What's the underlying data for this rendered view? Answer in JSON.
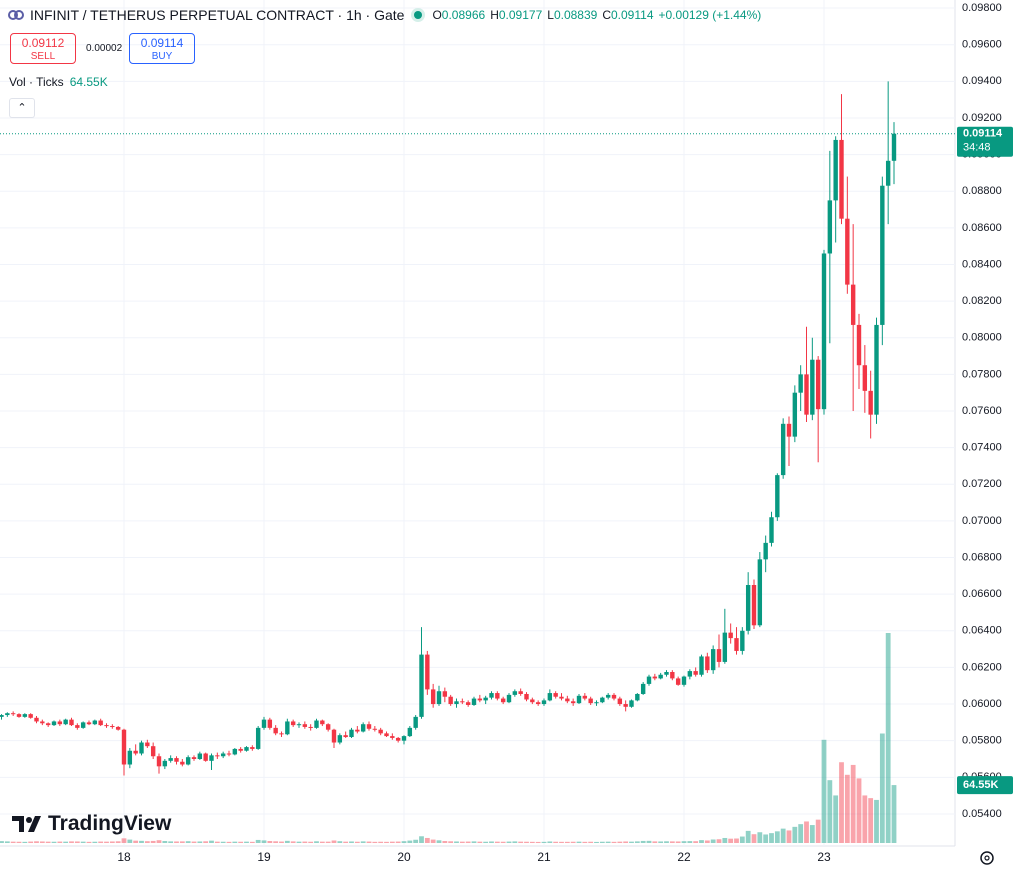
{
  "header": {
    "title": "INFINIT / TETHERUS PERPETUAL CONTRACT · 1h · Gate",
    "ohlc": [
      {
        "key": "O",
        "value": "0.08966"
      },
      {
        "key": "H",
        "value": "0.09177"
      },
      {
        "key": "L",
        "value": "0.08839"
      },
      {
        "key": "C",
        "value": "0.09114"
      }
    ],
    "change": "+0.00129 (+1.44%)",
    "sell_price": "0.09112",
    "sell": "SELL",
    "spread": "0.00002",
    "buy_price": "0.09114",
    "buy": "BUY",
    "vol_title": "Vol · Ticks",
    "vol_value": "64.55K"
  },
  "brand": "TradingView",
  "chart_data": {
    "type": "candlestick",
    "up_color": "#089981",
    "down_color": "#f23645",
    "grid": true,
    "ylim": [
      0.05225,
      0.09844
    ],
    "yticks": [
      {
        "value": 0.054,
        "label": "0.05400"
      },
      {
        "value": 0.056,
        "label": "0.05600"
      },
      {
        "value": 0.058,
        "label": "0.05800"
      },
      {
        "value": 0.06,
        "label": "0.06000"
      },
      {
        "value": 0.062,
        "label": "0.06200"
      },
      {
        "value": 0.064,
        "label": "0.06400"
      },
      {
        "value": 0.066,
        "label": "0.06600"
      },
      {
        "value": 0.068,
        "label": "0.06800"
      },
      {
        "value": 0.07,
        "label": "0.07000"
      },
      {
        "value": 0.072,
        "label": "0.07200"
      },
      {
        "value": 0.074,
        "label": "0.07400"
      },
      {
        "value": 0.076,
        "label": "0.07600"
      },
      {
        "value": 0.078,
        "label": "0.07800"
      },
      {
        "value": 0.08,
        "label": "0.08000"
      },
      {
        "value": 0.082,
        "label": "0.08200"
      },
      {
        "value": 0.084,
        "label": "0.08400"
      },
      {
        "value": 0.086,
        "label": "0.08600"
      },
      {
        "value": 0.088,
        "label": "0.08800"
      },
      {
        "value": 0.09,
        "label": "0.09000"
      },
      {
        "value": 0.092,
        "label": "0.09200"
      },
      {
        "value": 0.094,
        "label": "0.09400"
      },
      {
        "value": 0.096,
        "label": "0.09600"
      },
      {
        "value": 0.098,
        "label": "0.09800"
      }
    ],
    "countdown": "34:48",
    "volume_label": "64.55K",
    "categories": [
      null,
      null,
      null,
      null,
      null,
      null,
      null,
      null,
      null,
      null,
      null,
      null,
      null,
      null,
      null,
      null,
      null,
      null,
      null,
      null,
      null,
      "18",
      null,
      null,
      null,
      null,
      null,
      null,
      null,
      null,
      null,
      null,
      null,
      null,
      null,
      null,
      null,
      null,
      null,
      null,
      null,
      null,
      null,
      null,
      null,
      "19",
      null,
      null,
      null,
      null,
      null,
      null,
      null,
      null,
      null,
      null,
      null,
      null,
      null,
      null,
      null,
      null,
      null,
      null,
      null,
      null,
      null,
      null,
      null,
      "20",
      null,
      null,
      null,
      null,
      null,
      null,
      null,
      null,
      null,
      null,
      null,
      null,
      null,
      null,
      null,
      null,
      null,
      null,
      null,
      null,
      null,
      null,
      null,
      "21",
      null,
      null,
      null,
      null,
      null,
      null,
      null,
      null,
      null,
      null,
      null,
      null,
      null,
      null,
      null,
      null,
      null,
      null,
      null,
      null,
      null,
      null,
      null,
      "22",
      null,
      null,
      null,
      null,
      null,
      null,
      null,
      null,
      null,
      null,
      null,
      null,
      null,
      null,
      null,
      null,
      null,
      null,
      null,
      null,
      null,
      null,
      null,
      "23",
      null,
      null,
      null,
      null,
      null,
      null,
      null,
      null,
      null,
      null,
      null,
      null
    ],
    "candles": [
      [
        0.0593,
        0.05945,
        0.05915,
        0.0594,
        2100
      ],
      [
        0.0594,
        0.05955,
        0.0593,
        0.0595,
        1800
      ],
      [
        0.0595,
        0.0596,
        0.05935,
        0.05945,
        1500
      ],
      [
        0.05945,
        0.0595,
        0.05925,
        0.0593,
        1400
      ],
      [
        0.0593,
        0.0595,
        0.05925,
        0.05945,
        1300
      ],
      [
        0.05945,
        0.0595,
        0.0592,
        0.05925,
        1600
      ],
      [
        0.05925,
        0.05935,
        0.05895,
        0.05905,
        1900
      ],
      [
        0.05905,
        0.05915,
        0.05885,
        0.05895,
        1700
      ],
      [
        0.05895,
        0.059,
        0.05875,
        0.05885,
        1500
      ],
      [
        0.05885,
        0.0591,
        0.0588,
        0.05905,
        1400
      ],
      [
        0.05905,
        0.05915,
        0.0588,
        0.0589,
        1600
      ],
      [
        0.0589,
        0.0592,
        0.05885,
        0.05915,
        1500
      ],
      [
        0.05915,
        0.05925,
        0.0588,
        0.05885,
        1800
      ],
      [
        0.05885,
        0.05895,
        0.0586,
        0.0587,
        1700
      ],
      [
        0.0587,
        0.05905,
        0.05865,
        0.059,
        1500
      ],
      [
        0.059,
        0.0591,
        0.05885,
        0.0589,
        1300
      ],
      [
        0.0589,
        0.05915,
        0.05885,
        0.0591,
        1400
      ],
      [
        0.0591,
        0.0592,
        0.0588,
        0.05885,
        1600
      ],
      [
        0.05885,
        0.05895,
        0.0587,
        0.0588,
        1500
      ],
      [
        0.0588,
        0.0589,
        0.05865,
        0.05875,
        1700
      ],
      [
        0.05875,
        0.0588,
        0.05855,
        0.0586,
        1900
      ],
      [
        0.0586,
        0.05865,
        0.0561,
        0.0567,
        5200
      ],
      [
        0.0567,
        0.0576,
        0.0565,
        0.05745,
        3800
      ],
      [
        0.05745,
        0.0578,
        0.0572,
        0.0573,
        2600
      ],
      [
        0.0573,
        0.058,
        0.0572,
        0.0579,
        2400
      ],
      [
        0.0579,
        0.05805,
        0.0576,
        0.0577,
        2000
      ],
      [
        0.0577,
        0.0579,
        0.057,
        0.05715,
        2300
      ],
      [
        0.05715,
        0.0573,
        0.0562,
        0.0566,
        3100
      ],
      [
        0.0566,
        0.057,
        0.05645,
        0.0569,
        2200
      ],
      [
        0.0569,
        0.0572,
        0.0568,
        0.05705,
        1800
      ],
      [
        0.05705,
        0.05715,
        0.0567,
        0.05685,
        1700
      ],
      [
        0.05685,
        0.057,
        0.0566,
        0.0567,
        1800
      ],
      [
        0.0567,
        0.0572,
        0.05665,
        0.0571,
        2000
      ],
      [
        0.0571,
        0.0572,
        0.0569,
        0.057,
        1600
      ],
      [
        0.057,
        0.0574,
        0.05695,
        0.0573,
        1700
      ],
      [
        0.0573,
        0.05735,
        0.05685,
        0.0569,
        1900
      ],
      [
        0.0569,
        0.0573,
        0.0564,
        0.0572,
        2600
      ],
      [
        0.0572,
        0.05735,
        0.057,
        0.05715,
        1500
      ],
      [
        0.05715,
        0.0574,
        0.05705,
        0.0573,
        1400
      ],
      [
        0.0573,
        0.05745,
        0.05715,
        0.05725,
        1300
      ],
      [
        0.05725,
        0.0576,
        0.0572,
        0.05755,
        1500
      ],
      [
        0.05755,
        0.05765,
        0.05735,
        0.05745,
        1400
      ],
      [
        0.05745,
        0.0577,
        0.0574,
        0.05765,
        1500
      ],
      [
        0.05765,
        0.05775,
        0.05745,
        0.05755,
        1300
      ],
      [
        0.05755,
        0.0588,
        0.0575,
        0.0587,
        3400
      ],
      [
        0.0587,
        0.0593,
        0.0586,
        0.05915,
        2900
      ],
      [
        0.05915,
        0.05925,
        0.0586,
        0.0587,
        2200
      ],
      [
        0.0587,
        0.05885,
        0.0583,
        0.0584,
        1900
      ],
      [
        0.0584,
        0.0585,
        0.0582,
        0.05835,
        1600
      ],
      [
        0.05835,
        0.0592,
        0.0583,
        0.05905,
        2400
      ],
      [
        0.05905,
        0.05915,
        0.05875,
        0.05885,
        1800
      ],
      [
        0.05885,
        0.059,
        0.0587,
        0.0589,
        1500
      ],
      [
        0.0589,
        0.05905,
        0.05865,
        0.05875,
        1600
      ],
      [
        0.05875,
        0.0589,
        0.05855,
        0.0587,
        1400
      ],
      [
        0.0587,
        0.0592,
        0.05865,
        0.0591,
        1900
      ],
      [
        0.0591,
        0.05915,
        0.0588,
        0.0589,
        1500
      ],
      [
        0.0589,
        0.05895,
        0.0585,
        0.0586,
        1500
      ],
      [
        0.0586,
        0.05865,
        0.0576,
        0.0579,
        2800
      ],
      [
        0.0579,
        0.0584,
        0.0578,
        0.0583,
        2000
      ],
      [
        0.0583,
        0.0585,
        0.05815,
        0.0582,
        1500
      ],
      [
        0.0582,
        0.0587,
        0.05815,
        0.0586,
        1700
      ],
      [
        0.0586,
        0.0588,
        0.0584,
        0.0585,
        1400
      ],
      [
        0.0585,
        0.059,
        0.05845,
        0.0589,
        1800
      ],
      [
        0.0589,
        0.05905,
        0.05855,
        0.05865,
        1600
      ],
      [
        0.05865,
        0.0588,
        0.0585,
        0.0586,
        1300
      ],
      [
        0.0586,
        0.0587,
        0.0583,
        0.0584,
        1400
      ],
      [
        0.0584,
        0.0585,
        0.0582,
        0.05825,
        1300
      ],
      [
        0.05825,
        0.0584,
        0.05805,
        0.05815,
        1500
      ],
      [
        0.05815,
        0.0582,
        0.0579,
        0.058,
        1600
      ],
      [
        0.058,
        0.0583,
        0.0578,
        0.05825,
        2000
      ],
      [
        0.05825,
        0.0588,
        0.0582,
        0.0587,
        2700
      ],
      [
        0.0587,
        0.0594,
        0.0586,
        0.0593,
        3600
      ],
      [
        0.0593,
        0.0642,
        0.0592,
        0.0627,
        7500
      ],
      [
        0.0627,
        0.0629,
        0.0605,
        0.0608,
        5600
      ],
      [
        0.0608,
        0.0611,
        0.0598,
        0.06,
        3800
      ],
      [
        0.06,
        0.061,
        0.0599,
        0.0607,
        3000
      ],
      [
        0.0607,
        0.0609,
        0.0601,
        0.0604,
        2200
      ],
      [
        0.0604,
        0.0605,
        0.0599,
        0.06,
        1900
      ],
      [
        0.06,
        0.0603,
        0.0598,
        0.06015,
        1700
      ],
      [
        0.06015,
        0.0603,
        0.06,
        0.0601,
        1500
      ],
      [
        0.0601,
        0.0602,
        0.05985,
        0.05995,
        1600
      ],
      [
        0.05995,
        0.0604,
        0.0599,
        0.0603,
        1800
      ],
      [
        0.0603,
        0.0605,
        0.0601,
        0.0602,
        1500
      ],
      [
        0.0602,
        0.06045,
        0.06,
        0.06035,
        1400
      ],
      [
        0.06035,
        0.0607,
        0.06025,
        0.0606,
        1700
      ],
      [
        0.0606,
        0.0607,
        0.0602,
        0.0603,
        1500
      ],
      [
        0.0603,
        0.0604,
        0.06,
        0.0601,
        1400
      ],
      [
        0.0601,
        0.0606,
        0.06005,
        0.0605,
        1600
      ],
      [
        0.0605,
        0.0608,
        0.0604,
        0.0607,
        1800
      ],
      [
        0.0607,
        0.06085,
        0.06045,
        0.06055,
        1500
      ],
      [
        0.06055,
        0.06065,
        0.06015,
        0.06025,
        1400
      ],
      [
        0.06025,
        0.06035,
        0.06,
        0.0601,
        1300
      ],
      [
        0.0601,
        0.0602,
        0.0599,
        0.06,
        1200
      ],
      [
        0.06,
        0.0603,
        0.0599,
        0.0602,
        1300
      ],
      [
        0.0602,
        0.0608,
        0.06015,
        0.0606,
        1700
      ],
      [
        0.0606,
        0.0607,
        0.0603,
        0.0604,
        1400
      ],
      [
        0.0604,
        0.0606,
        0.0602,
        0.0603,
        1300
      ],
      [
        0.0603,
        0.06045,
        0.06005,
        0.06015,
        1300
      ],
      [
        0.06015,
        0.0603,
        0.0599,
        0.06005,
        1400
      ],
      [
        0.06005,
        0.06055,
        0.06,
        0.06045,
        1500
      ],
      [
        0.06045,
        0.0606,
        0.0602,
        0.0603,
        1300
      ],
      [
        0.0603,
        0.0604,
        0.05995,
        0.06005,
        1400
      ],
      [
        0.06005,
        0.0602,
        0.0599,
        0.0601,
        1200
      ],
      [
        0.0601,
        0.0604,
        0.06005,
        0.06035,
        1400
      ],
      [
        0.06035,
        0.0606,
        0.06025,
        0.0605,
        1500
      ],
      [
        0.0605,
        0.0606,
        0.0602,
        0.0603,
        1300
      ],
      [
        0.0603,
        0.0604,
        0.0599,
        0.06,
        1500
      ],
      [
        0.06,
        0.0602,
        0.0596,
        0.05985,
        1700
      ],
      [
        0.05985,
        0.06025,
        0.0598,
        0.0602,
        1500
      ],
      [
        0.0602,
        0.0606,
        0.06015,
        0.06055,
        1800
      ],
      [
        0.06055,
        0.0612,
        0.0605,
        0.0611,
        2300
      ],
      [
        0.0611,
        0.0616,
        0.061,
        0.0615,
        2400
      ],
      [
        0.0615,
        0.06165,
        0.0613,
        0.0614,
        1800
      ],
      [
        0.0614,
        0.0617,
        0.06135,
        0.0616,
        1700
      ],
      [
        0.0616,
        0.06185,
        0.0615,
        0.06175,
        1900
      ],
      [
        0.06175,
        0.06185,
        0.0613,
        0.0614,
        1800
      ],
      [
        0.0614,
        0.0615,
        0.061,
        0.06105,
        1700
      ],
      [
        0.06105,
        0.06155,
        0.06095,
        0.0615,
        2000
      ],
      [
        0.0615,
        0.0619,
        0.06135,
        0.0618,
        2100
      ],
      [
        0.0618,
        0.062,
        0.0615,
        0.0616,
        2000
      ],
      [
        0.0616,
        0.0627,
        0.0615,
        0.0626,
        3200
      ],
      [
        0.0626,
        0.0628,
        0.0617,
        0.06185,
        2800
      ],
      [
        0.06185,
        0.0632,
        0.06165,
        0.063,
        3900
      ],
      [
        0.063,
        0.0638,
        0.062,
        0.0623,
        4200
      ],
      [
        0.0623,
        0.0652,
        0.0622,
        0.0639,
        5600
      ],
      [
        0.0639,
        0.0644,
        0.0633,
        0.0636,
        4800
      ],
      [
        0.0636,
        0.0642,
        0.0627,
        0.0629,
        5000
      ],
      [
        0.0629,
        0.0642,
        0.0627,
        0.064,
        7200
      ],
      [
        0.064,
        0.0672,
        0.0638,
        0.0665,
        13500
      ],
      [
        0.0665,
        0.0668,
        0.0641,
        0.0643,
        9800
      ],
      [
        0.0643,
        0.0683,
        0.0642,
        0.0679,
        12000
      ],
      [
        0.0679,
        0.0692,
        0.0672,
        0.0688,
        9500
      ],
      [
        0.0688,
        0.0705,
        0.0686,
        0.0702,
        11000
      ],
      [
        0.0702,
        0.0726,
        0.07,
        0.0725,
        13000
      ],
      [
        0.0725,
        0.0756,
        0.0723,
        0.0753,
        16000
      ],
      [
        0.0753,
        0.0757,
        0.073,
        0.0746,
        14000
      ],
      [
        0.0746,
        0.0774,
        0.0743,
        0.077,
        18000
      ],
      [
        0.077,
        0.0785,
        0.076,
        0.078,
        21000
      ],
      [
        0.078,
        0.0806,
        0.0754,
        0.0758,
        24000
      ],
      [
        0.0758,
        0.08,
        0.0755,
        0.0788,
        20000
      ],
      [
        0.0788,
        0.079,
        0.0732,
        0.0761,
        26000
      ],
      [
        0.0761,
        0.0848,
        0.0758,
        0.0846,
        115000
      ],
      [
        0.0846,
        0.0902,
        0.0797,
        0.0875,
        70000
      ],
      [
        0.0875,
        0.091,
        0.0852,
        0.0908,
        53000
      ],
      [
        0.0908,
        0.0933,
        0.0862,
        0.0865,
        90000
      ],
      [
        0.0865,
        0.0888,
        0.0824,
        0.0829,
        76000
      ],
      [
        0.0829,
        0.0862,
        0.076,
        0.0807,
        87000
      ],
      [
        0.0807,
        0.0813,
        0.0772,
        0.0785,
        72000
      ],
      [
        0.0785,
        0.0796,
        0.0759,
        0.0771,
        53000
      ],
      [
        0.0771,
        0.0782,
        0.0745,
        0.0758,
        50000
      ],
      [
        0.0758,
        0.0811,
        0.0753,
        0.0807,
        48000
      ],
      [
        0.0807,
        0.0888,
        0.0796,
        0.0883,
        122000
      ],
      [
        0.0883,
        0.094,
        0.0862,
        0.08966,
        234000
      ],
      [
        0.08966,
        0.09177,
        0.08839,
        0.09114,
        64550
      ]
    ]
  }
}
